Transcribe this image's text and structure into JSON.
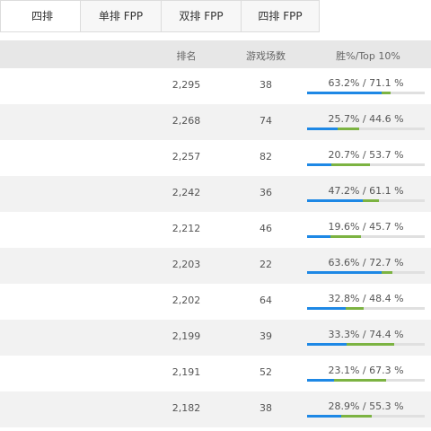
{
  "tabs": [
    "四排",
    "单排 FPP",
    "双排 FPP",
    "四排 FPP"
  ],
  "columns": {
    "rank": "排名",
    "games": "游戏场数",
    "win_top10": "胜%/Top 10%"
  },
  "colors": {
    "win_bar": "#1e88e5",
    "top10_bar": "#7cb342",
    "track": "#e0e0e0"
  },
  "rows": [
    {
      "rank": "2,295",
      "games": "38",
      "label": "63.2% / 71.1 %",
      "win": 63.2,
      "top10": 71.1
    },
    {
      "rank": "2,268",
      "games": "74",
      "label": "25.7% / 44.6 %",
      "win": 25.7,
      "top10": 44.6
    },
    {
      "rank": "2,257",
      "games": "82",
      "label": "20.7% / 53.7 %",
      "win": 20.7,
      "top10": 53.7
    },
    {
      "rank": "2,242",
      "games": "36",
      "label": "47.2% / 61.1 %",
      "win": 47.2,
      "top10": 61.1
    },
    {
      "rank": "2,212",
      "games": "46",
      "label": "19.6% / 45.7 %",
      "win": 19.6,
      "top10": 45.7
    },
    {
      "rank": "2,203",
      "games": "22",
      "label": "63.6% / 72.7 %",
      "win": 63.6,
      "top10": 72.7
    },
    {
      "rank": "2,202",
      "games": "64",
      "label": "32.8% / 48.4 %",
      "win": 32.8,
      "top10": 48.4
    },
    {
      "rank": "2,199",
      "games": "39",
      "label": "33.3% / 74.4 %",
      "win": 33.3,
      "top10": 74.4
    },
    {
      "rank": "2,191",
      "games": "52",
      "label": "23.1% / 67.3 %",
      "win": 23.1,
      "top10": 67.3
    },
    {
      "rank": "2,182",
      "games": "38",
      "label": "28.9% / 55.3 %",
      "win": 28.9,
      "top10": 55.3
    }
  ]
}
